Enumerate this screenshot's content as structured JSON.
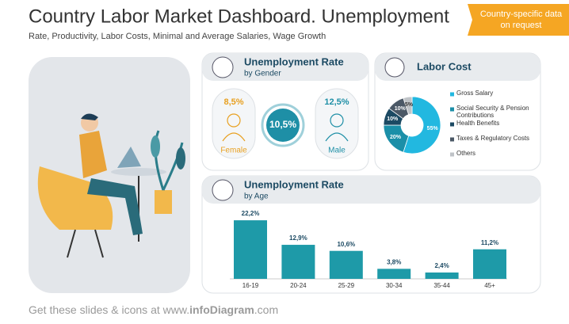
{
  "header": {
    "title": "Country Labor Market Dashboard. Unemployment",
    "subtitle": "Rate, Productivity, Labor Costs, Minimal and Average Salaries, Wage Growth"
  },
  "badge": "Country-specific data on request",
  "gender_panel": {
    "title": "Unemployment Rate",
    "subtitle": "by Gender",
    "categories": [
      "Female",
      null,
      "Male"
    ],
    "values": [
      8.5,
      10.5,
      12.5
    ],
    "value_labels": [
      "8,5%",
      "10,5%",
      "12,5%"
    ],
    "colors": [
      "#e8a020",
      "#1e8fa6",
      "#1e8fa6"
    ]
  },
  "chart_data": [
    {
      "type": "pie",
      "title": "Labor Cost",
      "categories": [
        "Gross Salary",
        "Social Security & Pension Contributions",
        "Health Benefits",
        "Taxes & Regulatory Costs",
        "Others"
      ],
      "values": [
        55,
        20,
        10,
        10,
        5
      ],
      "value_labels": [
        "55%",
        "20%",
        "10%",
        "10%",
        "5%"
      ],
      "colors": [
        "#22b8e0",
        "#1b8fa8",
        "#1c4a63",
        "#4b5866",
        "#bfc3c7"
      ]
    },
    {
      "type": "bar",
      "title": "Unemployment Rate",
      "subtitle": "by Age",
      "categories": [
        "16-19",
        "20-24",
        "25-29",
        "30-34",
        "35-44",
        "45+"
      ],
      "values": [
        22.2,
        12.9,
        10.6,
        3.8,
        2.4,
        11.2
      ],
      "value_labels": [
        "22,2%",
        "12,9%",
        "10,6%",
        "3,8%",
        "2,4%",
        "11,2%"
      ],
      "color": "#1e9aa8"
    }
  ],
  "footer": {
    "lead": "Get these slides & icons at www.",
    "brand": "infoDiagram",
    "tail": ".com"
  }
}
